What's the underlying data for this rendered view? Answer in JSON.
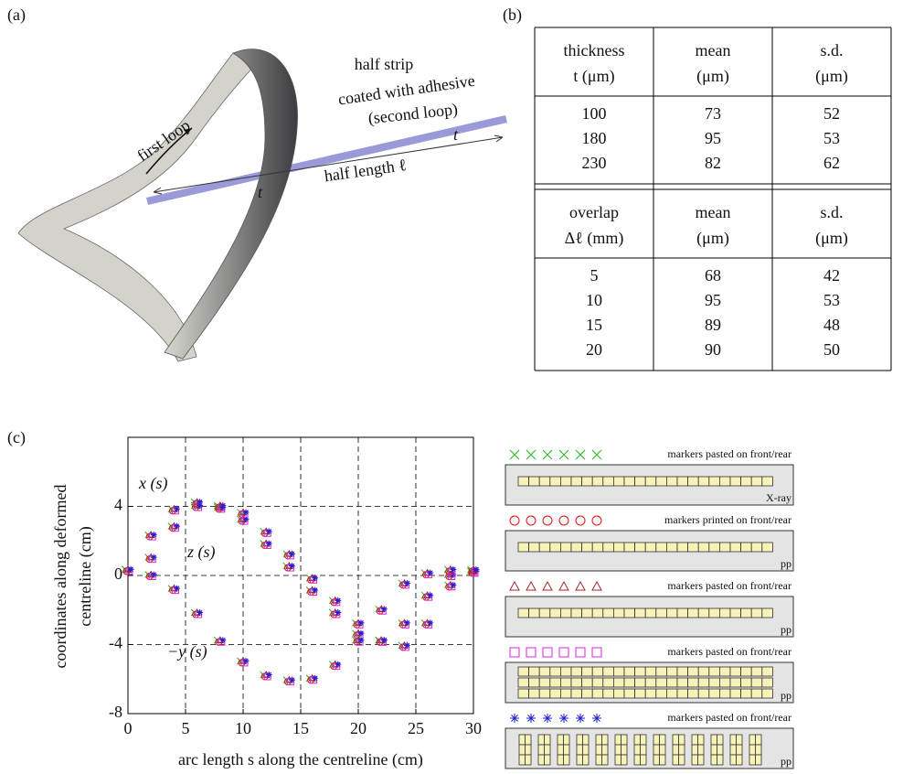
{
  "panel_a": {
    "label": "(a)",
    "annotations": [
      "half strip",
      "coated with adhesive",
      "(second loop)",
      "first loop",
      "half length ℓ",
      "t",
      "t"
    ]
  },
  "panel_b": {
    "label": "(b)",
    "tables": [
      {
        "header": [
          [
            "thickness",
            "t (μm)"
          ],
          [
            "mean",
            "(μm)"
          ],
          [
            "s.d.",
            "(μm)"
          ]
        ],
        "rows": [
          [
            100,
            73,
            52
          ],
          [
            180,
            95,
            53
          ],
          [
            230,
            82,
            62
          ]
        ]
      },
      {
        "header": [
          [
            "overlap",
            "Δℓ (mm)"
          ],
          [
            "mean",
            "(μm)"
          ],
          [
            "s.d.",
            "(μm)"
          ]
        ],
        "rows": [
          [
            5,
            68,
            42
          ],
          [
            10,
            95,
            53
          ],
          [
            15,
            89,
            48
          ],
          [
            20,
            90,
            50
          ]
        ]
      }
    ]
  },
  "panel_c": {
    "label": "(c)",
    "marker_sets": [
      {
        "marker": "x",
        "color": "#22b422",
        "label": "markers pasted on front/rear",
        "tag": "X-ray"
      },
      {
        "marker": "circle",
        "color": "#e01010",
        "label": "markers printed on front/rear",
        "tag": "pp"
      },
      {
        "marker": "triangle",
        "color": "#a02828",
        "label": "markers pasted on front/rear",
        "tag": "pp"
      },
      {
        "marker": "square",
        "color": "#e020e0",
        "label": "markers pasted on front/rear",
        "tag": "pp"
      },
      {
        "marker": "star",
        "color": "#2020d0",
        "label": "markers pasted on front/rear",
        "tag": "pp"
      }
    ]
  },
  "chart_data": {
    "type": "scatter",
    "xlabel": "arc length s  along the centreline (cm)",
    "ylabel": [
      "coordinates along deformed",
      "centreline (cm)"
    ],
    "x": [
      0,
      2,
      4,
      6,
      8,
      10,
      12,
      14,
      16,
      18,
      20,
      22,
      24,
      26,
      28,
      30
    ],
    "series": [
      {
        "name": "x (s)",
        "values": [
          0.3,
          2.3,
          3.8,
          4.2,
          4.0,
          3.2,
          1.8,
          0.5,
          -0.9,
          -2.2,
          -3.4,
          -3.8,
          -2.8,
          -1.2,
          0,
          0.2
        ]
      },
      {
        "name": "z (s)",
        "values": [
          0.3,
          1.0,
          2.8,
          4.0,
          3.9,
          3.6,
          2.5,
          1.2,
          -0.2,
          -1.5,
          -2.8,
          -3.8,
          -4.1,
          -2.8,
          -0.6,
          0.2
        ]
      },
      {
        "name": "−y (s)",
        "values": [
          0.3,
          0.0,
          -0.8,
          -2.2,
          -3.8,
          -5.0,
          -5.8,
          -6.1,
          -6.0,
          -5.2,
          -3.8,
          -2.0,
          -0.5,
          0.1,
          0.3,
          0.3
        ]
      }
    ],
    "xlim": [
      0,
      30
    ],
    "ylim": [
      -8,
      8
    ],
    "xticks": [
      0,
      5,
      10,
      15,
      20,
      25,
      30
    ],
    "yticks": [
      -8,
      -4,
      0,
      4
    ],
    "grid": true
  }
}
